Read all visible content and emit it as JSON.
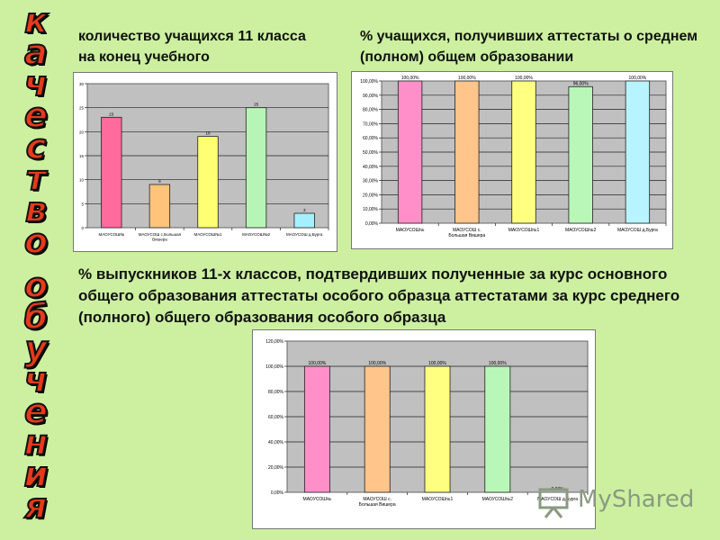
{
  "side_title": {
    "lines": [
      "качество",
      "обучения"
    ]
  },
  "headings": {
    "h1": "количество учащихся 11 класса на конец учебного",
    "h2": "% учащихся, получивших аттестаты о среднем (полном) общем образовании",
    "h3": "% выпускников 11-х классов, подтвердивших полученные за курс основного общего образования аттестаты особого образца аттестатами за курс среднего (полного) общего образования особого образца"
  },
  "watermark": {
    "text": "MyShared",
    "icon": "presentation-board-icon"
  },
  "chart_data": [
    {
      "type": "bar",
      "categories": [
        "МАОУСОШ№",
        "МАОУСОШ с.Большая Вишера",
        "МАОУСОШ№1",
        "МАОУСОШ№2",
        "МАОУСОШ д.Бурга"
      ],
      "values": [
        23,
        9,
        19,
        25,
        3
      ],
      "data_labels": [
        "23",
        "9",
        "19",
        "25",
        "3"
      ],
      "ylim": [
        0,
        30
      ],
      "yticks": [
        "0",
        "5",
        "10",
        "15",
        "20",
        "25",
        "30"
      ],
      "colors": [
        "#ff6b9c",
        "#ffc47a",
        "#ffff73",
        "#b7f5b7",
        "#a5f0ff"
      ],
      "grid": true
    },
    {
      "type": "bar",
      "categories": [
        "МАОУСОШ№",
        "МАОУСОШ с. Большая Вишера",
        "МАОУСОШ№1",
        "МАОУСОШ№2",
        "МАОУСОШ д.Бурга"
      ],
      "values": [
        100,
        100,
        100,
        96,
        100
      ],
      "data_labels": [
        "100,00%",
        "100,00%",
        "100,00%",
        "96,00%",
        "100,00%"
      ],
      "ylim": [
        0,
        100
      ],
      "yticks": [
        "0,00%",
        "10,00%",
        "20,00%",
        "30,00%",
        "40,00%",
        "50,00%",
        "60,00%",
        "70,00%",
        "80,00%",
        "90,00%",
        "100,00%"
      ],
      "colors": [
        "#ff8fc8",
        "#ffc58a",
        "#ffff80",
        "#b9f7b9",
        "#b8f4ff"
      ],
      "grid": true
    },
    {
      "type": "bar",
      "categories": [
        "МАОУСОШ№",
        "МАОУСОШ с. Большая Вишера",
        "МАОУСОШ№1",
        "МАОУСОШ№2",
        "МАОУСОШ д.Бурга"
      ],
      "values": [
        100,
        100,
        100,
        100,
        0
      ],
      "data_labels": [
        "100,00%",
        "100,00%",
        "100,00%",
        "100,00%",
        "0,00%"
      ],
      "ylim": [
        0,
        120
      ],
      "yticks": [
        "0,00%",
        "20,00%",
        "40,00%",
        "60,00%",
        "80,00%",
        "100,00%",
        "120,00%"
      ],
      "colors": [
        "#ff8fc8",
        "#ffc58a",
        "#ffff80",
        "#b9f7b9",
        "#b8f4ff"
      ],
      "grid": true
    }
  ]
}
